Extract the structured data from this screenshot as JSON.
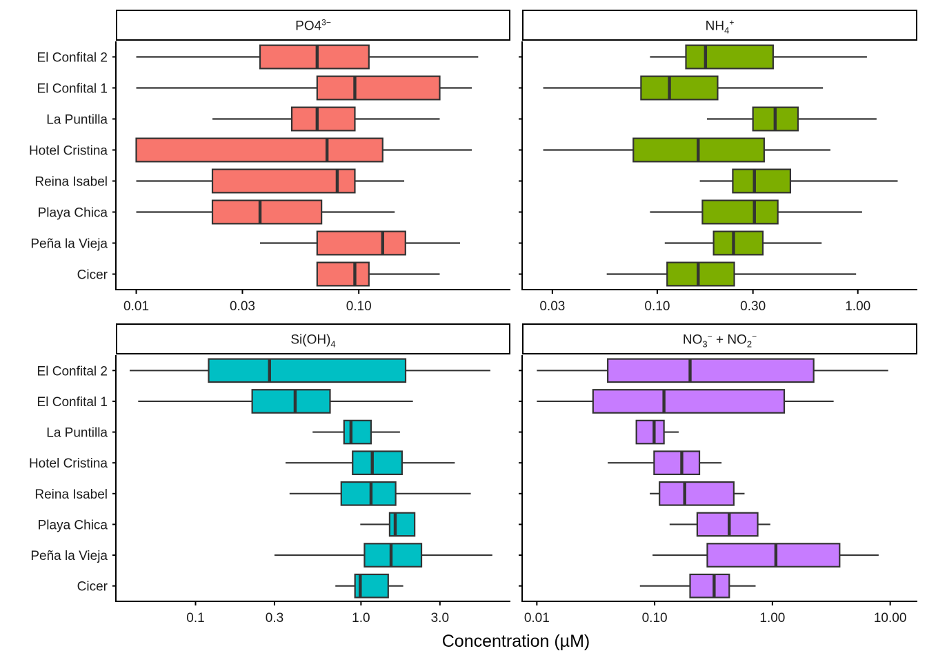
{
  "chart_data": {
    "type": "boxplot",
    "orientation": "horizontal",
    "xlabel": "Concentration (µM)",
    "xscale": "log10",
    "categories": [
      "El Confital 2",
      "El Confital 1",
      "La Puntilla",
      "Hotel Cristina",
      "Reina Isabel",
      "Playa Chica",
      "Peña la Vieja",
      "Cicer"
    ],
    "stat_order": [
      "whisker_low",
      "q1",
      "median",
      "q3",
      "whisker_high"
    ],
    "panels": [
      {
        "title": "PO4³⁻",
        "title_parts": [
          {
            "t": "PO4"
          },
          {
            "t": "3−",
            "sup": true
          }
        ],
        "color": "#F8766D",
        "xticks": [
          0.01,
          0.03,
          0.1
        ],
        "xtick_labels": [
          "0.01",
          "0.03",
          "0.10"
        ],
        "xlim": [
          0.0081,
          0.48
        ],
        "boxes": [
          [
            0.01,
            0.036,
            0.065,
            0.111,
            0.344
          ],
          [
            0.01,
            0.065,
            0.096,
            0.231,
            0.322
          ],
          [
            0.022,
            0.05,
            0.065,
            0.096,
            0.231
          ],
          [
            0.01,
            0.01,
            0.072,
            0.128,
            0.322
          ],
          [
            0.01,
            0.022,
            0.08,
            0.096,
            0.16
          ],
          [
            0.01,
            0.022,
            0.036,
            0.068,
            0.145
          ],
          [
            0.036,
            0.065,
            0.128,
            0.162,
            0.285
          ],
          [
            0.065,
            0.065,
            0.096,
            0.111,
            0.231
          ]
        ]
      },
      {
        "title": "NH4+",
        "title_parts": [
          {
            "t": "NH"
          },
          {
            "t": "4",
            "sub": true
          },
          {
            "t": "+",
            "sup": true
          }
        ],
        "color": "#7CAE00",
        "xticks": [
          0.03,
          0.1,
          0.3,
          1.0
        ],
        "xtick_labels": [
          "0.03",
          "0.10",
          "0.30",
          "1.00"
        ],
        "xlim": [
          0.0212,
          1.98
        ],
        "boxes": [
          [
            0.092,
            0.139,
            0.174,
            0.378,
            1.11
          ],
          [
            0.027,
            0.083,
            0.115,
            0.2,
            0.67
          ],
          [
            0.177,
            0.3,
            0.387,
            0.503,
            1.24
          ],
          [
            0.027,
            0.076,
            0.16,
            0.341,
            0.73
          ],
          [
            0.163,
            0.238,
            0.305,
            0.461,
            1.58
          ],
          [
            0.092,
            0.168,
            0.305,
            0.399,
            1.05
          ],
          [
            0.109,
            0.191,
            0.24,
            0.336,
            0.66
          ],
          [
            0.056,
            0.112,
            0.16,
            0.242,
            0.98
          ]
        ]
      },
      {
        "title": "Si(OH)4",
        "title_parts": [
          {
            "t": "Si(OH)"
          },
          {
            "t": "4",
            "sub": true
          }
        ],
        "color": "#00BFC4",
        "xticks": [
          0.1,
          0.3,
          1.0,
          3.0
        ],
        "xtick_labels": [
          "0.1",
          "0.3",
          "1.0",
          "3.0"
        ],
        "xlim": [
          0.033,
          8.0
        ],
        "boxes": [
          [
            0.04,
            0.12,
            0.28,
            1.86,
            6.05
          ],
          [
            0.045,
            0.22,
            0.4,
            0.65,
            2.06
          ],
          [
            0.51,
            0.79,
            0.87,
            1.15,
            1.72
          ],
          [
            0.35,
            0.89,
            1.17,
            1.77,
            3.69
          ],
          [
            0.37,
            0.76,
            1.15,
            1.62,
            4.61
          ],
          [
            0.99,
            1.49,
            1.61,
            2.11,
            2.11
          ],
          [
            0.3,
            1.05,
            1.52,
            2.32,
            6.22
          ],
          [
            0.7,
            0.92,
            0.99,
            1.46,
            1.8
          ]
        ]
      },
      {
        "title": "NO3− + NO2−",
        "title_parts": [
          {
            "t": "NO"
          },
          {
            "t": "3",
            "sub": true
          },
          {
            "t": "−",
            "sup": true
          },
          {
            "t": " + NO"
          },
          {
            "t": "2",
            "sub": true
          },
          {
            "t": "−",
            "sup": true
          }
        ],
        "color": "#C77CFF",
        "xticks": [
          0.01,
          0.1,
          1.0,
          10.0
        ],
        "xtick_labels": [
          "0.01",
          "0.10",
          "1.00",
          "10.00"
        ],
        "xlim": [
          0.0075,
          17.0
        ],
        "boxes": [
          [
            0.01,
            0.04,
            0.2,
            2.24,
            9.62
          ],
          [
            0.01,
            0.03,
            0.12,
            1.26,
            3.31
          ],
          [
            0.07,
            0.07,
            0.099,
            0.12,
            0.16
          ],
          [
            0.04,
            0.099,
            0.17,
            0.24,
            0.37
          ],
          [
            0.091,
            0.11,
            0.18,
            0.47,
            0.58
          ],
          [
            0.134,
            0.23,
            0.43,
            0.75,
            0.96
          ],
          [
            0.096,
            0.28,
            1.07,
            3.72,
            7.98
          ],
          [
            0.075,
            0.2,
            0.32,
            0.43,
            0.72
          ]
        ]
      }
    ]
  }
}
